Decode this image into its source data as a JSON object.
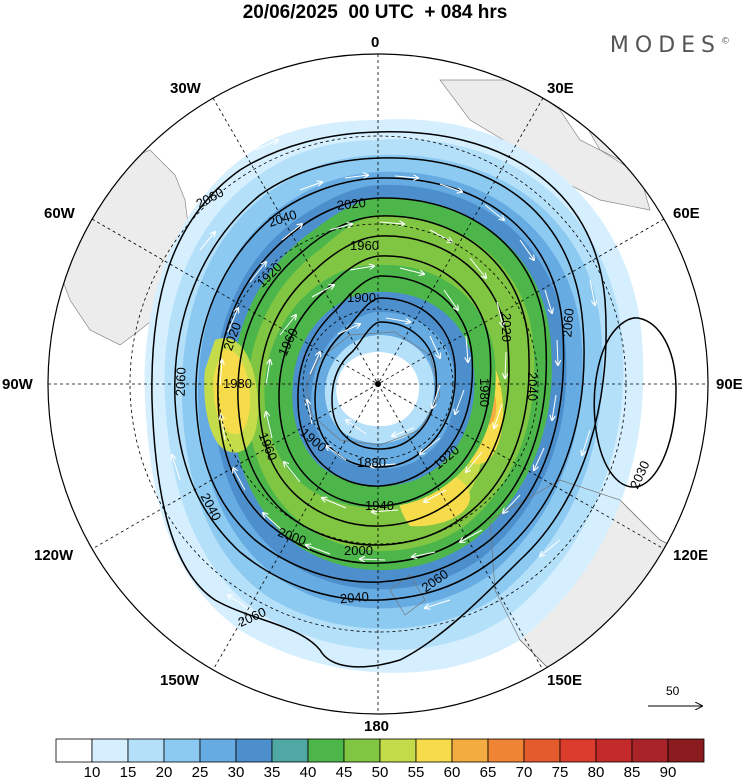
{
  "header": {
    "title": "20/06/2025  00 UTC  + 084 hrs",
    "logo": "MODES",
    "logo_mark": "©"
  },
  "map": {
    "projection": "south-polar-stereographic",
    "longitude_labels": {
      "n": "0",
      "ne30": "30E",
      "ne60": "60E",
      "e": "90E",
      "se120": "120E",
      "se150": "150E",
      "s": "180",
      "sw150": "150W",
      "sw120": "120W",
      "w": "90W",
      "nw60": "60W",
      "nw30": "30W"
    },
    "contour_labels": [
      "2060",
      "2040",
      "2020",
      "2000",
      "1980",
      "1960",
      "1940",
      "1920",
      "1900",
      "1880",
      "2030"
    ],
    "reference_vector_label": "50",
    "colors": {
      "land": "#ececec",
      "contour": "#000000",
      "vector": "#ffffff",
      "grid": "#000000"
    }
  },
  "colorbar": {
    "ticks": [
      "10",
      "15",
      "20",
      "25",
      "30",
      "35",
      "40",
      "45",
      "50",
      "55",
      "60",
      "65",
      "70",
      "75",
      "80",
      "85",
      "90"
    ],
    "colors": [
      "#ffffff",
      "#d5efff",
      "#b5e0fa",
      "#8ccaf2",
      "#66abe2",
      "#4c8fcc",
      "#50a8a4",
      "#4cb64a",
      "#80c643",
      "#c4dc49",
      "#f6dc4a",
      "#f2ac40",
      "#ee8434",
      "#e45c2e",
      "#dc3c2c",
      "#c42a2a",
      "#a82428",
      "#8a1c20"
    ]
  }
}
